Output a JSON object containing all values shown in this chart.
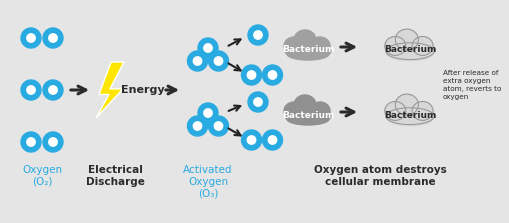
{
  "bg_color": "#e5e5e5",
  "oxygen_color": "#29abe2",
  "oxygen_inner": "#ffffff",
  "text_dark": "#2b2b2b",
  "text_blue": "#29abe2",
  "arrow_color": "#2b2b2b",
  "lightning_yellow": "#ffe600",
  "lightning_edge": "#ffffff",
  "label_oxygen": "Oxygen\n(O₂)",
  "label_discharge": "Electrical\nDischarge",
  "label_activated": "Activated\nOxygen\n(O₃)",
  "label_destroys": "Oxygen atom destroys\ncellular membrane",
  "label_bacterium": "Bacterium",
  "label_after": "After release of extra oxygen\natom, reverts to oxygen",
  "label_energy": "Energy"
}
